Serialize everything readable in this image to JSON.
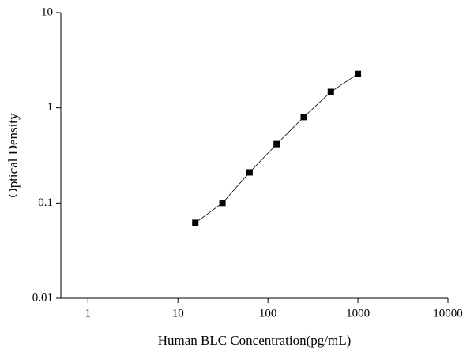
{
  "chart_data": {
    "type": "line",
    "x_label": "Human BLC Concentration(pg/mL)",
    "y_label": "Optical Density",
    "x": [
      15.6,
      31.25,
      62.5,
      125,
      250,
      500,
      1000
    ],
    "series": [
      {
        "color": "#000000",
        "values": [
          0.062,
          0.1,
          0.21,
          0.416,
          0.8,
          1.47,
          2.27
        ]
      }
    ],
    "marker": "square",
    "x_log": true,
    "y_log": true,
    "xlim": [
      0.5,
      10000
    ],
    "xticks": [
      1,
      10,
      100,
      1000,
      10000
    ],
    "ylim": [
      0.01,
      10
    ],
    "yticks": [
      0.01,
      0.1,
      1,
      10
    ]
  }
}
